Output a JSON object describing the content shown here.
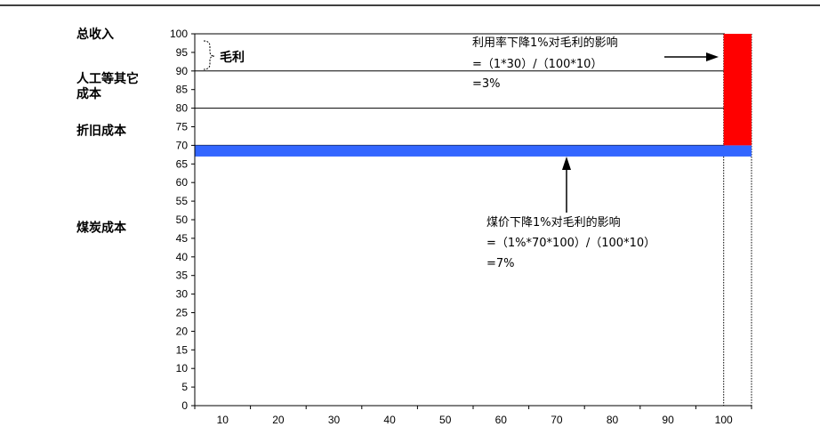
{
  "chart_data": {
    "type": "bar",
    "xlim": [
      0,
      100
    ],
    "ylim": [
      0,
      100
    ],
    "x_ticks": [
      10,
      20,
      30,
      40,
      50,
      60,
      70,
      80,
      90,
      100
    ],
    "y_ticks": [
      0,
      5,
      10,
      15,
      20,
      25,
      30,
      35,
      40,
      45,
      50,
      55,
      60,
      65,
      70,
      75,
      80,
      85,
      90,
      95,
      100
    ],
    "reference_lines": [
      100,
      90,
      80,
      70
    ],
    "side_labels": [
      {
        "text": "总收入",
        "y": 100
      },
      {
        "text": "人工等其它",
        "y": 88
      },
      {
        "text": "成本",
        "y": 84
      },
      {
        "text": "折旧成本",
        "y": 74
      },
      {
        "text": "煤炭成本",
        "y": 48
      }
    ],
    "bands": [
      {
        "name": "blue-band",
        "x0": 0,
        "x1": 100,
        "y0": 67,
        "y1": 70,
        "color": "#3366ff"
      },
      {
        "name": "red-block",
        "x0": 95,
        "x1": 100,
        "y0": 70,
        "y1": 100,
        "color": "#ff0000"
      }
    ],
    "margin_label": "毛利",
    "annotations": {
      "utilization": [
        "利用率下降1%对毛利的影响",
        "=（1*30）/（100*10）",
        "=3%"
      ],
      "coal_price": [
        "煤价下降1%对毛利的影响",
        "=（1%*70*100）/（100*10）",
        "=7%"
      ]
    }
  }
}
